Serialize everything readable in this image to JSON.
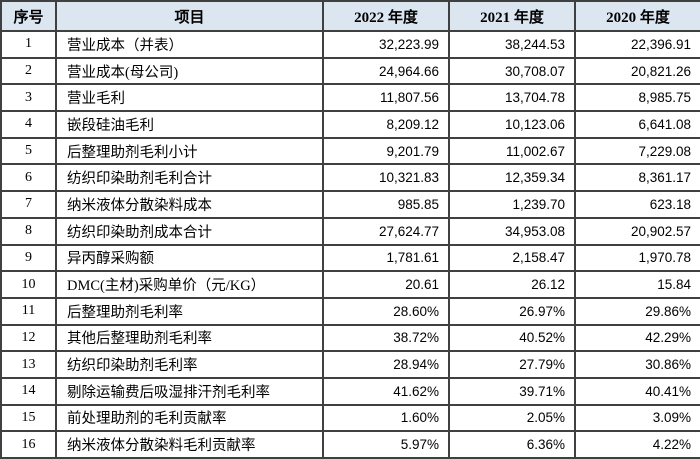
{
  "colors": {
    "header_background": "#dce6f1",
    "border": "#404040",
    "text": "#000000",
    "row_background": "#ffffff"
  },
  "table": {
    "headers": [
      "序号",
      "项目",
      "2022 年度",
      "2021 年度",
      "2020 年度"
    ],
    "rows": [
      {
        "no": "1",
        "item": "营业成本（并表）",
        "y2022": "32,223.99",
        "y2021": "38,244.53",
        "y2020": "22,396.91"
      },
      {
        "no": "2",
        "item": "营业成本(母公司)",
        "y2022": "24,964.66",
        "y2021": "30,708.07",
        "y2020": "20,821.26"
      },
      {
        "no": "3",
        "item": "营业毛利",
        "y2022": "11,807.56",
        "y2021": "13,704.78",
        "y2020": "8,985.75"
      },
      {
        "no": "4",
        "item": "嵌段硅油毛利",
        "y2022": "8,209.12",
        "y2021": "10,123.06",
        "y2020": "6,641.08"
      },
      {
        "no": "5",
        "item": "后整理助剂毛利小计",
        "y2022": "9,201.79",
        "y2021": "11,002.67",
        "y2020": "7,229.08"
      },
      {
        "no": "6",
        "item": "纺织印染助剂毛利合计",
        "y2022": "10,321.83",
        "y2021": "12,359.34",
        "y2020": "8,361.17"
      },
      {
        "no": "7",
        "item": "纳米液体分散染料成本",
        "y2022": "985.85",
        "y2021": "1,239.70",
        "y2020": "623.18"
      },
      {
        "no": "8",
        "item": "纺织印染助剂成本合计",
        "y2022": "27,624.77",
        "y2021": "34,953.08",
        "y2020": "20,902.57"
      },
      {
        "no": "9",
        "item": "异丙醇采购额",
        "y2022": "1,781.61",
        "y2021": "2,158.47",
        "y2020": "1,970.78"
      },
      {
        "no": "10",
        "item": "DMC(主材)采购单价（元/KG）",
        "y2022": "20.61",
        "y2021": "26.12",
        "y2020": "15.84"
      },
      {
        "no": "11",
        "item": "后整理助剂毛利率",
        "y2022": "28.60%",
        "y2021": "26.97%",
        "y2020": "29.86%"
      },
      {
        "no": "12",
        "item": "其他后整理助剂毛利率",
        "y2022": "38.72%",
        "y2021": "40.52%",
        "y2020": "42.29%"
      },
      {
        "no": "13",
        "item": "纺织印染助剂毛利率",
        "y2022": "28.94%",
        "y2021": "27.79%",
        "y2020": "30.86%"
      },
      {
        "no": "14",
        "item": "剔除运输费后吸湿排汗剂毛利率",
        "y2022": "41.62%",
        "y2021": "39.71%",
        "y2020": "40.41%"
      },
      {
        "no": "15",
        "item": "前处理助剂的毛利贡献率",
        "y2022": "1.60%",
        "y2021": "2.05%",
        "y2020": "3.09%"
      },
      {
        "no": "16",
        "item": "纳米液体分散染料毛利贡献率",
        "y2022": "5.97%",
        "y2021": "6.36%",
        "y2020": "4.22%"
      }
    ]
  }
}
